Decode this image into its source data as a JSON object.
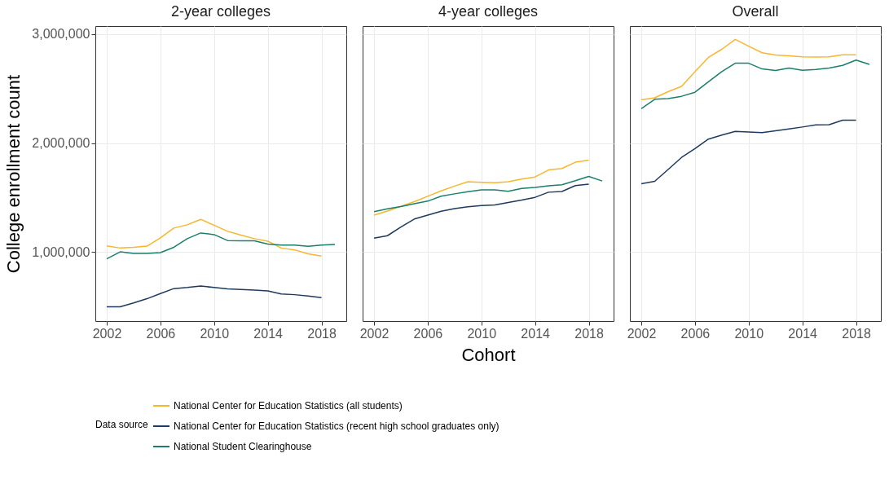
{
  "chart_data": [
    {
      "type": "line",
      "title": "2-year colleges",
      "ylabel": "College enrollment count",
      "legend": "bottom",
      "legend_title": "Data source",
      "grid": true,
      "x": [
        2002,
        2003,
        2004,
        2005,
        2006,
        2007,
        2008,
        2009,
        2010,
        2011,
        2012,
        2013,
        2014,
        2015,
        2016,
        2017,
        2018,
        2019
      ],
      "xlim": [
        2001.15,
        2019.85
      ],
      "xticks": [
        2002,
        2006,
        2010,
        2014,
        2018
      ],
      "ylim": [
        367000,
        3073000
      ],
      "yticks": [
        {
          "value": 1000000,
          "label": "1,000,000"
        },
        {
          "value": 2000000,
          "label": "2,000,000"
        },
        {
          "value": 3000000,
          "label": "3,000,000"
        }
      ],
      "series": [
        {
          "name": "National Center for Education Statistics (all students)",
          "color": "#f8b62d",
          "values": [
            1057000,
            1037000,
            1044000,
            1054000,
            1130000,
            1220000,
            1250000,
            1300000,
            1246000,
            1190000,
            1155000,
            1123000,
            1100000,
            1037000,
            1020000,
            983000,
            963000,
            null
          ]
        },
        {
          "name": "National Center for Education Statistics (recent high school graduates only)",
          "color": "#1f3a5f",
          "values": [
            498000,
            498000,
            533000,
            572000,
            619000,
            665000,
            675000,
            688000,
            675000,
            663000,
            656000,
            651000,
            643000,
            616000,
            609000,
            597000,
            582000,
            null
          ]
        },
        {
          "name": "National Student Clearinghouse",
          "color": "#1a7f6b",
          "values": [
            938000,
            1002000,
            988000,
            988000,
            995000,
            1044000,
            1123000,
            1175000,
            1160000,
            1106000,
            1103000,
            1103000,
            1074000,
            1064000,
            1064000,
            1052000,
            1064000,
            1069000
          ]
        }
      ]
    },
    {
      "type": "line",
      "title": "4-year colleges",
      "xlabel": "Cohort",
      "grid": true,
      "tick_labels": "x",
      "x": [
        2002,
        2003,
        2004,
        2005,
        2006,
        2007,
        2008,
        2009,
        2010,
        2011,
        2012,
        2013,
        2014,
        2015,
        2016,
        2017,
        2018,
        2019
      ],
      "xlim": [
        2001.15,
        2019.85
      ],
      "xticks": [
        2002,
        2006,
        2010,
        2014,
        2018
      ],
      "ylim": [
        367000,
        3073000
      ],
      "yticks": [
        1000000,
        2000000,
        3000000
      ],
      "series": [
        {
          "name": "National Center for Education Statistics (all students)",
          "color": "#f8b62d",
          "values": [
            1339000,
            1376000,
            1420000,
            1462000,
            1512000,
            1561000,
            1605000,
            1645000,
            1640000,
            1635000,
            1645000,
            1669000,
            1689000,
            1753000,
            1767000,
            1824000,
            1844000,
            null
          ]
        },
        {
          "name": "National Center for Education Statistics (recent high school graduates only)",
          "color": "#1f3a5f",
          "values": [
            1128000,
            1150000,
            1229000,
            1303000,
            1339000,
            1374000,
            1399000,
            1416000,
            1426000,
            1433000,
            1455000,
            1477000,
            1502000,
            1549000,
            1556000,
            1610000,
            1622000,
            null
          ]
        },
        {
          "name": "National Student Clearinghouse",
          "color": "#1a7f6b",
          "values": [
            1371000,
            1396000,
            1418000,
            1443000,
            1467000,
            1512000,
            1534000,
            1553000,
            1571000,
            1571000,
            1558000,
            1583000,
            1593000,
            1608000,
            1617000,
            1654000,
            1694000,
            1652000
          ]
        }
      ]
    },
    {
      "type": "line",
      "title": "Overall",
      "grid": true,
      "tick_labels": "x",
      "x": [
        2002,
        2003,
        2004,
        2005,
        2006,
        2007,
        2008,
        2009,
        2010,
        2011,
        2012,
        2013,
        2014,
        2015,
        2016,
        2017,
        2018,
        2019
      ],
      "xlim": [
        2001.15,
        2019.85
      ],
      "xticks": [
        2002,
        2006,
        2010,
        2014,
        2018
      ],
      "ylim": [
        367000,
        3073000
      ],
      "yticks": [
        1000000,
        2000000,
        3000000
      ],
      "series": [
        {
          "name": "National Center for Education Statistics (all students)",
          "color": "#f8b62d",
          "values": [
            2397000,
            2415000,
            2471000,
            2520000,
            2655000,
            2786000,
            2860000,
            2951000,
            2889000,
            2828000,
            2808000,
            2800000,
            2790000,
            2789000,
            2790000,
            2810000,
            2810000,
            null
          ]
        },
        {
          "name": "National Center for Education Statistics (recent high school graduates only)",
          "color": "#1f3a5f",
          "values": [
            1627000,
            1649000,
            1757000,
            1868000,
            1949000,
            2036000,
            2073000,
            2107000,
            2102000,
            2095000,
            2112000,
            2129000,
            2147000,
            2166000,
            2169000,
            2210000,
            2210000,
            null
          ]
        },
        {
          "name": "National Student Clearinghouse",
          "color": "#1a7f6b",
          "values": [
            2316000,
            2402000,
            2407000,
            2429000,
            2466000,
            2562000,
            2655000,
            2732000,
            2732000,
            2680000,
            2665000,
            2688000,
            2668000,
            2675000,
            2688000,
            2712000,
            2761000,
            2722000
          ]
        }
      ]
    }
  ]
}
